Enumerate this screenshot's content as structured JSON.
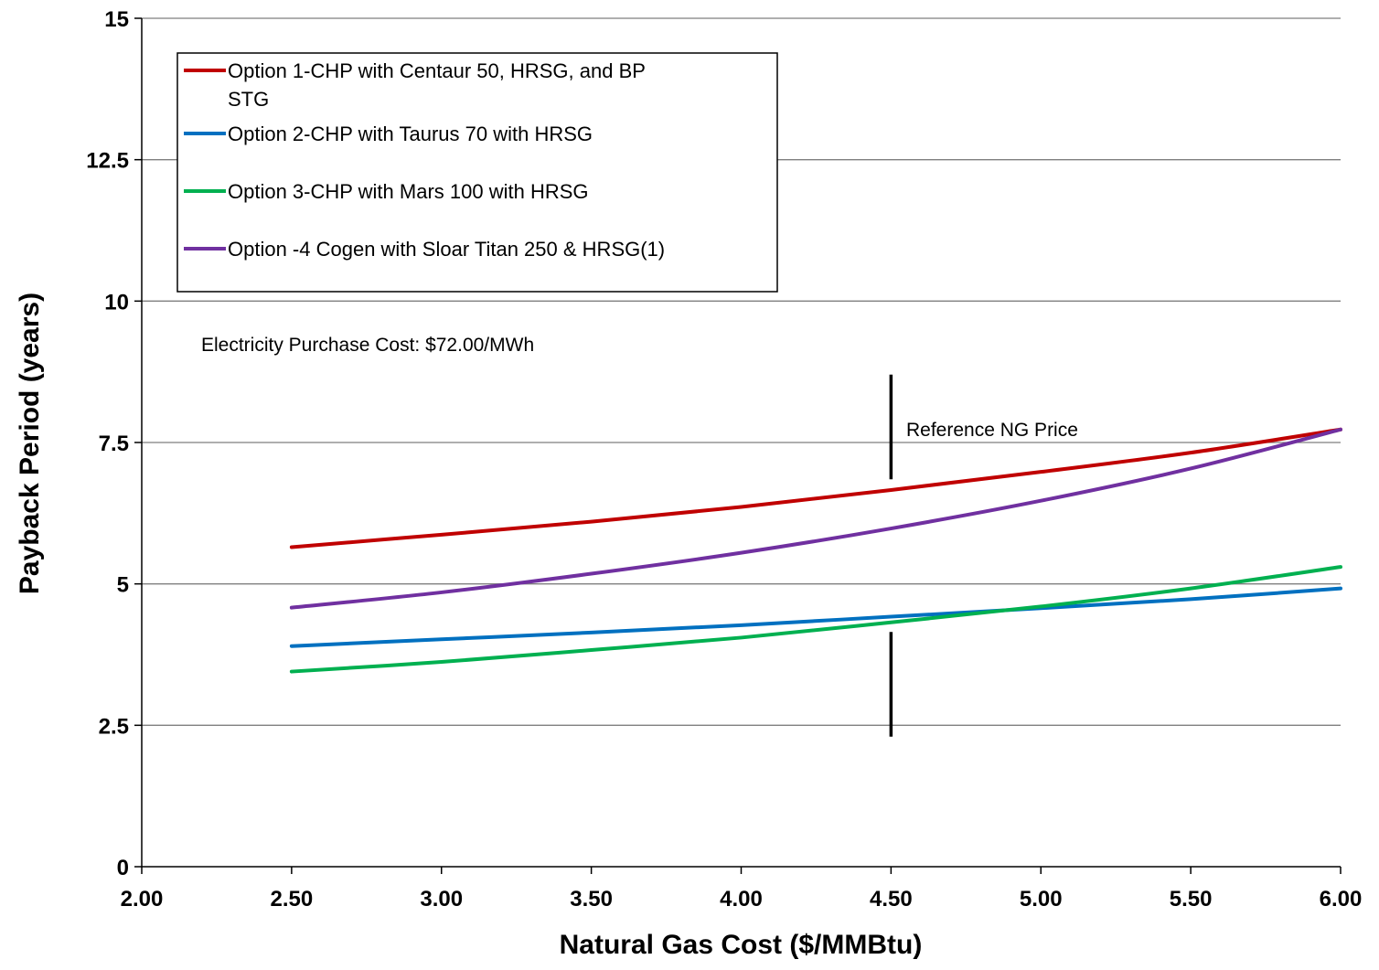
{
  "chart_data": {
    "type": "line",
    "title": "",
    "xlabel": "Natural Gas Cost ($/MMBtu)",
    "ylabel": "Payback Period (years)",
    "xlim": [
      2.0,
      6.0
    ],
    "ylim": [
      0,
      15
    ],
    "x_ticks": [
      2.0,
      2.5,
      3.0,
      3.5,
      4.0,
      4.5,
      5.0,
      5.5,
      6.0
    ],
    "x_tick_labels": [
      "2.00",
      "2.50",
      "3.00",
      "3.50",
      "4.00",
      "4.50",
      "5.00",
      "5.50",
      "6.00"
    ],
    "y_ticks": [
      0,
      2.5,
      5,
      7.5,
      10,
      12.5,
      15
    ],
    "y_tick_labels": [
      "0",
      "2.5",
      "5",
      "7.5",
      "10",
      "12.5",
      "15"
    ],
    "grid": "horizontal",
    "legend_placement": "top-left",
    "x": [
      2.5,
      3.0,
      3.5,
      4.0,
      4.5,
      5.0,
      5.5,
      6.0
    ],
    "series": [
      {
        "name": "Option 1-CHP with Centaur 50, HRSG, and BP STG",
        "legend_lines": [
          "Option 1-CHP with Centaur 50, HRSG, and BP",
          "STG"
        ],
        "color": "#c00000",
        "values": [
          5.65,
          5.87,
          6.1,
          6.36,
          6.66,
          6.98,
          7.32,
          7.73
        ]
      },
      {
        "name": "Option 2-CHP with Taurus 70 with HRSG",
        "legend_lines": [
          "Option 2-CHP with Taurus 70 with HRSG"
        ],
        "color": "#0070c0",
        "values": [
          3.9,
          4.02,
          4.14,
          4.27,
          4.42,
          4.57,
          4.73,
          4.92
        ]
      },
      {
        "name": "Option 3-CHP with Mars 100 with HRSG",
        "legend_lines": [
          "Option 3-CHP with Mars 100 with HRSG"
        ],
        "color": "#00b050",
        "values": [
          3.45,
          3.62,
          3.83,
          4.05,
          4.32,
          4.6,
          4.92,
          5.3
        ]
      },
      {
        "name": "Option -4 Cogen  with Sloar Titan 250 & HRSG(1)",
        "legend_lines": [
          "Option -4 Cogen  with Sloar Titan 250 & HRSG(1)"
        ],
        "color": "#7030a0",
        "values": [
          4.58,
          4.85,
          5.18,
          5.55,
          5.98,
          6.47,
          7.04,
          7.73
        ]
      }
    ],
    "annotations": {
      "electricity_note": "Electricity Purchase Cost: $72.00/MWh",
      "reference_label": "Reference NG Price",
      "reference_x": 4.5,
      "reference_upper_segment": [
        6.85,
        8.7
      ],
      "reference_lower_segment": [
        2.3,
        4.15
      ]
    }
  }
}
